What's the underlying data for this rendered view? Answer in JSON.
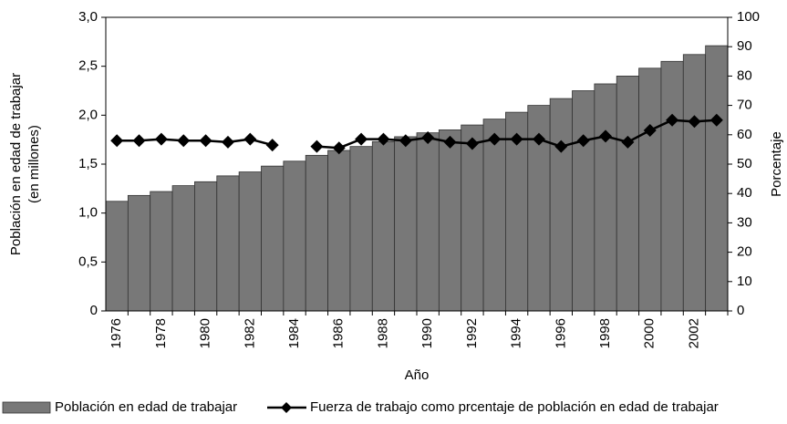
{
  "chart_data": {
    "type": "bar-line",
    "ylabel": "Población en edad de trabajar",
    "ylabel_sub": "(en millones)",
    "y2label": "Porcentaje",
    "xlabel": "Año",
    "categories": [
      "1976",
      null,
      "1978",
      null,
      "1980",
      null,
      "1982",
      null,
      "1984",
      null,
      "1986",
      null,
      "1988",
      null,
      "1990",
      null,
      "1992",
      null,
      "1994",
      null,
      "1996",
      null,
      "1998",
      null,
      "2000",
      null,
      "2002",
      null
    ],
    "series": [
      {
        "name": "Población en edad de trabajar",
        "type": "bar",
        "color": "#787878",
        "values": [
          1.12,
          1.18,
          1.22,
          1.28,
          1.32,
          1.38,
          1.42,
          1.48,
          1.53,
          1.59,
          1.64,
          1.68,
          1.73,
          1.78,
          1.82,
          1.85,
          1.9,
          1.96,
          2.03,
          2.1,
          2.17,
          2.25,
          2.32,
          2.4,
          2.48,
          2.55,
          2.62,
          2.71
        ]
      },
      {
        "name": "Fuerza de trabajo como prcentaje de población en edad de trabajar",
        "type": "line",
        "axis": "y2",
        "color": "#000000",
        "values": [
          58,
          58,
          58.5,
          58,
          58,
          57.5,
          58.5,
          56.5,
          null,
          56,
          55.5,
          58.5,
          58.5,
          58,
          59,
          57.5,
          57,
          58.5,
          58.5,
          58.5,
          56,
          58,
          59.5,
          57.5,
          61.5,
          65,
          64.5,
          65
        ]
      }
    ],
    "ylim": [
      0,
      3
    ],
    "yticks": [
      0,
      {
        "value": 0.5,
        "label": "0,5"
      },
      {
        "value": 1,
        "label": "1,0"
      },
      {
        "value": 1.5,
        "label": "1,5"
      },
      {
        "value": 2,
        "label": "2,0"
      },
      {
        "value": 2.5,
        "label": "2,5"
      },
      {
        "value": 3,
        "label": "3,0"
      }
    ],
    "y2lim": [
      0,
      100
    ],
    "y2ticks": [
      0,
      10,
      20,
      30,
      40,
      50,
      60,
      70,
      80,
      90,
      100
    ],
    "legend": "bottom"
  }
}
